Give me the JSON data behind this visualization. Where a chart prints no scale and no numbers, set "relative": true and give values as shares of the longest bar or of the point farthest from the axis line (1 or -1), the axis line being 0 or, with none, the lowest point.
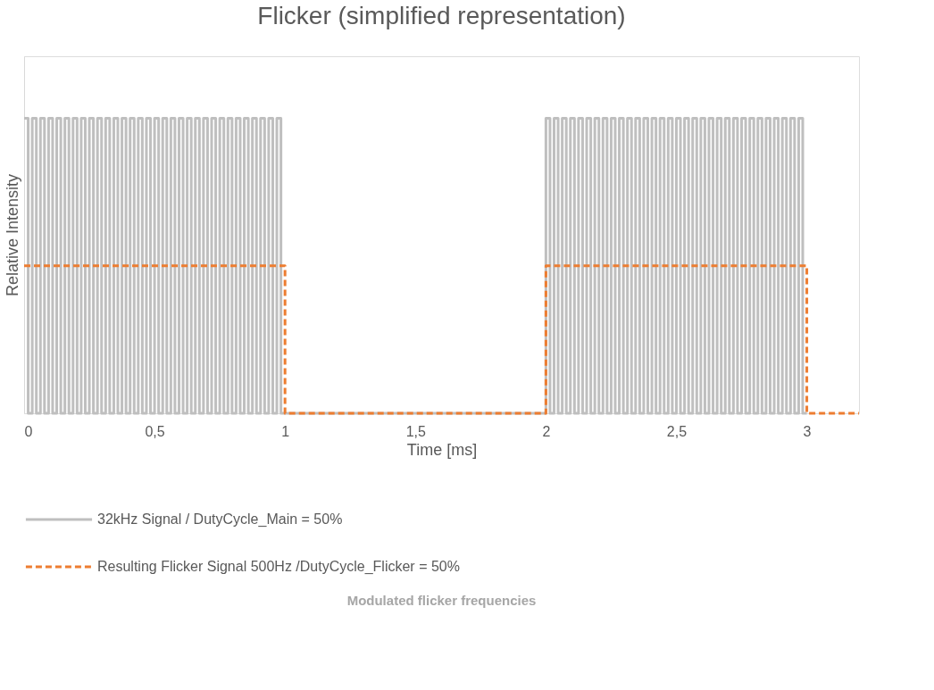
{
  "chart_data": {
    "type": "step",
    "title": "Flicker (simplified representation)",
    "xlabel": "Time [ms]",
    "ylabel": "Relative Intensity",
    "relative": true,
    "xlim": [
      0,
      3.2
    ],
    "xticks": [
      0,
      {
        "value": 0.5,
        "label": "0,5"
      },
      1,
      {
        "value": 1.5,
        "label": "1,5"
      },
      2,
      {
        "value": 2.5,
        "label": "2,5"
      },
      3
    ],
    "grid": false,
    "legend": "bottom",
    "marker": "none",
    "annotations": [
      "Modulated flicker frequencies"
    ],
    "series": [
      {
        "name": "32kHz Signal / DutyCycle_Main = 50%",
        "color": "#bfbfbf",
        "line_style": "solid",
        "x": [
          0,
          0.015625,
          0.03125,
          0.046875,
          0.0625,
          0.078125,
          0.09375,
          0.109375,
          0.125,
          0.140625,
          0.15625,
          0.171875,
          0.1875,
          0.203125,
          0.21875,
          0.234375,
          0.25,
          0.265625,
          0.28125,
          0.296875,
          0.3125,
          0.328125,
          0.34375,
          0.359375,
          0.375,
          0.390625,
          0.40625,
          0.421875,
          0.4375,
          0.453125,
          0.46875,
          0.484375,
          0.5,
          0.515625,
          0.53125,
          0.546875,
          0.5625,
          0.578125,
          0.59375,
          0.609375,
          0.625,
          0.640625,
          0.65625,
          0.671875,
          0.6875,
          0.703125,
          0.71875,
          0.734375,
          0.75,
          0.765625,
          0.78125,
          0.796875,
          0.8125,
          0.828125,
          0.84375,
          0.859375,
          0.875,
          0.890625,
          0.90625,
          0.921875,
          0.9375,
          0.953125,
          0.96875,
          0.984375,
          1,
          2,
          2.015625,
          2.03125,
          2.046875,
          2.0625,
          2.078125,
          2.09375,
          2.109375,
          2.125,
          2.140625,
          2.15625,
          2.171875,
          2.1875,
          2.203125,
          2.21875,
          2.234375,
          2.25,
          2.265625,
          2.28125,
          2.296875,
          2.3125,
          2.328125,
          2.34375,
          2.359375,
          2.375,
          2.390625,
          2.40625,
          2.421875,
          2.4375,
          2.453125,
          2.46875,
          2.484375,
          2.5,
          2.515625,
          2.53125,
          2.546875,
          2.5625,
          2.578125,
          2.59375,
          2.609375,
          2.625,
          2.640625,
          2.65625,
          2.671875,
          2.6875,
          2.703125,
          2.71875,
          2.734375,
          2.75,
          2.765625,
          2.78125,
          2.796875,
          2.8125,
          2.828125,
          2.84375,
          2.859375,
          2.875,
          2.890625,
          2.90625,
          2.921875,
          2.9375,
          2.953125,
          2.96875,
          2.984375,
          3
        ],
        "values": [
          1,
          0,
          1,
          0,
          1,
          0,
          1,
          0,
          1,
          0,
          1,
          0,
          1,
          0,
          1,
          0,
          1,
          0,
          1,
          0,
          1,
          0,
          1,
          0,
          1,
          0,
          1,
          0,
          1,
          0,
          1,
          0,
          1,
          0,
          1,
          0,
          1,
          0,
          1,
          0,
          1,
          0,
          1,
          0,
          1,
          0,
          1,
          0,
          1,
          0,
          1,
          0,
          1,
          0,
          1,
          0,
          1,
          0,
          1,
          0,
          1,
          0,
          1,
          0,
          0,
          1,
          0,
          1,
          0,
          1,
          0,
          1,
          0,
          1,
          0,
          1,
          0,
          1,
          0,
          1,
          0,
          1,
          0,
          1,
          0,
          1,
          0,
          1,
          0,
          1,
          0,
          1,
          0,
          1,
          0,
          1,
          0,
          1,
          0,
          1,
          0,
          1,
          0,
          1,
          0,
          1,
          0,
          1,
          0,
          1,
          0,
          1,
          0,
          1,
          0,
          1,
          0,
          1,
          0,
          1,
          0,
          1,
          0,
          1,
          0,
          1,
          0,
          1,
          0,
          0
        ]
      },
      {
        "name": "Resulting Flicker Signal 500Hz /DutyCycle_Flicker = 50%",
        "color": "#ed7d31",
        "line_style": "dashed",
        "x": [
          0,
          1,
          2,
          3,
          3.2
        ],
        "values": [
          0.5,
          0,
          0.5,
          0,
          0
        ]
      }
    ]
  }
}
